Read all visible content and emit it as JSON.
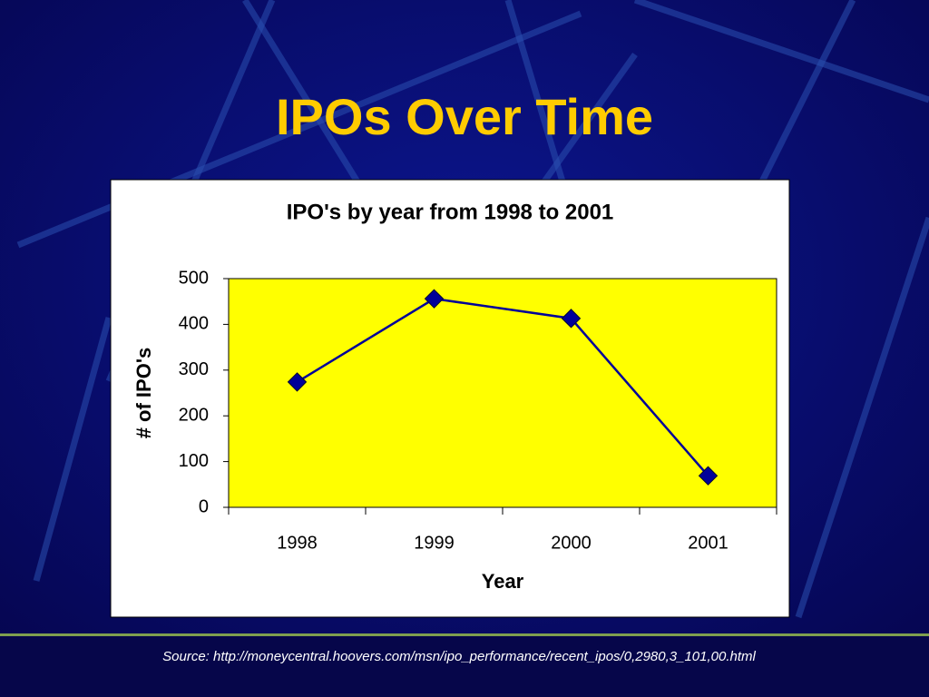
{
  "slide_title": "IPOs Over Time",
  "source": "Source:  http://moneycentral.hoovers.com/msn/ipo_performance/recent_ipos/0,2980,3_101,00.html",
  "chart_data": {
    "type": "line",
    "title": "IPO's by year from 1998 to 2001",
    "xlabel": "Year",
    "ylabel": "# of IPO's",
    "categories": [
      "1998",
      "1999",
      "2000",
      "2001"
    ],
    "values": [
      274,
      456,
      413,
      69
    ],
    "color": "#000099",
    "marker": "diamond",
    "plot_background": "#ffff00",
    "ylim": [
      0,
      500
    ],
    "yticks": [
      0,
      100,
      200,
      300,
      400,
      500
    ],
    "grid": false
  }
}
